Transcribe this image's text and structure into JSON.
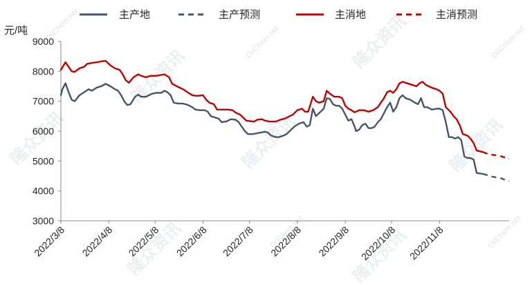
{
  "chart_data": {
    "type": "line",
    "unit_label": "元/吨",
    "ylim": [
      3000,
      9000
    ],
    "y_ticks": [
      3000,
      4000,
      5000,
      6000,
      7000,
      8000,
      9000
    ],
    "x_tick_labels": [
      "2022/3/8",
      "2022/4/8",
      "2022/5/8",
      "2022/6/8",
      "2022/7/8",
      "2022/8/8",
      "2022/9/8",
      "2022/10/8",
      "2022/11/8"
    ],
    "x_tick_dates": [
      "2022-03-08",
      "2022-04-08",
      "2022-05-08",
      "2022-06-08",
      "2022-07-08",
      "2022-08-08",
      "2022-09-08",
      "2022-10-08",
      "2022-11-08"
    ],
    "x_range": [
      "2022-03-08",
      "2022-12-23"
    ],
    "grid": false,
    "legend_position": "top",
    "colors": {
      "producing": "#44546a",
      "consuming": "#c00000"
    },
    "series": [
      {
        "name": "主产地",
        "color": "#44546a",
        "dash": false,
        "points": [
          [
            "2022-03-08",
            7200
          ],
          [
            "2022-03-09",
            7400
          ],
          [
            "2022-03-11",
            7600
          ],
          [
            "2022-03-13",
            7300
          ],
          [
            "2022-03-15",
            7050
          ],
          [
            "2022-03-17",
            7000
          ],
          [
            "2022-03-20",
            7200
          ],
          [
            "2022-03-23",
            7300
          ],
          [
            "2022-03-26",
            7400
          ],
          [
            "2022-03-28",
            7350
          ],
          [
            "2022-03-31",
            7450
          ],
          [
            "2022-04-03",
            7500
          ],
          [
            "2022-04-06",
            7580
          ],
          [
            "2022-04-09",
            7500
          ],
          [
            "2022-04-12",
            7400
          ],
          [
            "2022-04-14",
            7350
          ],
          [
            "2022-04-16",
            7200
          ],
          [
            "2022-04-18",
            7000
          ],
          [
            "2022-04-20",
            6870
          ],
          [
            "2022-04-22",
            6900
          ],
          [
            "2022-04-25",
            7150
          ],
          [
            "2022-04-27",
            7220
          ],
          [
            "2022-04-29",
            7150
          ],
          [
            "2022-05-02",
            7150
          ],
          [
            "2022-05-04",
            7200
          ],
          [
            "2022-05-06",
            7250
          ],
          [
            "2022-05-09",
            7280
          ],
          [
            "2022-05-12",
            7280
          ],
          [
            "2022-05-14",
            7350
          ],
          [
            "2022-05-16",
            7300
          ],
          [
            "2022-05-18",
            7200
          ],
          [
            "2022-05-20",
            6950
          ],
          [
            "2022-05-23",
            6920
          ],
          [
            "2022-05-26",
            6920
          ],
          [
            "2022-05-29",
            6880
          ],
          [
            "2022-06-01",
            6800
          ],
          [
            "2022-06-03",
            6720
          ],
          [
            "2022-06-06",
            6700
          ],
          [
            "2022-06-09",
            6700
          ],
          [
            "2022-06-11",
            6650
          ],
          [
            "2022-06-13",
            6500
          ],
          [
            "2022-06-16",
            6450
          ],
          [
            "2022-06-18",
            6420
          ],
          [
            "2022-06-20",
            6300
          ],
          [
            "2022-06-23",
            6320
          ],
          [
            "2022-06-26",
            6400
          ],
          [
            "2022-06-29",
            6380
          ],
          [
            "2022-07-01",
            6300
          ],
          [
            "2022-07-03",
            6150
          ],
          [
            "2022-07-05",
            6000
          ],
          [
            "2022-07-07",
            5900
          ],
          [
            "2022-07-10",
            5900
          ],
          [
            "2022-07-12",
            5920
          ],
          [
            "2022-07-15",
            5950
          ],
          [
            "2022-07-18",
            5980
          ],
          [
            "2022-07-20",
            5950
          ],
          [
            "2022-07-22",
            5850
          ],
          [
            "2022-07-25",
            5800
          ],
          [
            "2022-07-27",
            5800
          ],
          [
            "2022-07-30",
            5850
          ],
          [
            "2022-08-01",
            5900
          ],
          [
            "2022-08-03",
            6000
          ],
          [
            "2022-08-06",
            6150
          ],
          [
            "2022-08-09",
            6250
          ],
          [
            "2022-08-12",
            6300
          ],
          [
            "2022-08-14",
            6150
          ],
          [
            "2022-08-16",
            6200
          ],
          [
            "2022-08-18",
            6750
          ],
          [
            "2022-08-20",
            6500
          ],
          [
            "2022-08-22",
            6600
          ],
          [
            "2022-08-25",
            6750
          ],
          [
            "2022-08-27",
            7100
          ],
          [
            "2022-08-29",
            7080
          ],
          [
            "2022-08-31",
            6900
          ],
          [
            "2022-09-02",
            6850
          ],
          [
            "2022-09-04",
            6850
          ],
          [
            "2022-09-06",
            6750
          ],
          [
            "2022-09-08",
            6550
          ],
          [
            "2022-09-10",
            6350
          ],
          [
            "2022-09-12",
            6400
          ],
          [
            "2022-09-14",
            6150
          ],
          [
            "2022-09-15",
            6000
          ],
          [
            "2022-09-17",
            6050
          ],
          [
            "2022-09-19",
            6200
          ],
          [
            "2022-09-21",
            6250
          ],
          [
            "2022-09-23",
            6100
          ],
          [
            "2022-09-25",
            6100
          ],
          [
            "2022-09-27",
            6150
          ],
          [
            "2022-09-29",
            6300
          ],
          [
            "2022-10-01",
            6400
          ],
          [
            "2022-10-03",
            6600
          ],
          [
            "2022-10-05",
            6800
          ],
          [
            "2022-10-07",
            6950
          ],
          [
            "2022-10-09",
            6650
          ],
          [
            "2022-10-11",
            6800
          ],
          [
            "2022-10-13",
            7100
          ],
          [
            "2022-10-15",
            7200
          ],
          [
            "2022-10-17",
            7100
          ],
          [
            "2022-10-20",
            7050
          ],
          [
            "2022-10-23",
            6950
          ],
          [
            "2022-10-25",
            6900
          ],
          [
            "2022-10-27",
            7100
          ],
          [
            "2022-10-29",
            6800
          ],
          [
            "2022-10-31",
            6800
          ],
          [
            "2022-11-03",
            6720
          ],
          [
            "2022-11-06",
            6750
          ],
          [
            "2022-11-08",
            6750
          ],
          [
            "2022-11-10",
            6700
          ],
          [
            "2022-11-12",
            6300
          ],
          [
            "2022-11-14",
            5800
          ],
          [
            "2022-11-16",
            5800
          ],
          [
            "2022-11-18",
            5750
          ],
          [
            "2022-11-20",
            5800
          ],
          [
            "2022-11-22",
            5700
          ],
          [
            "2022-11-24",
            5150
          ],
          [
            "2022-11-26",
            5100
          ],
          [
            "2022-11-28",
            5100
          ],
          [
            "2022-11-30",
            5050
          ],
          [
            "2022-12-02",
            4600
          ],
          [
            "2022-12-06",
            4570
          ]
        ]
      },
      {
        "name": "主产预测",
        "color": "#44546a",
        "dash": true,
        "points": [
          [
            "2022-12-06",
            4570
          ],
          [
            "2022-12-12",
            4480
          ],
          [
            "2022-12-18",
            4420
          ],
          [
            "2022-12-23",
            4320
          ]
        ]
      },
      {
        "name": "主消地",
        "color": "#c00000",
        "dash": false,
        "points": [
          [
            "2022-03-08",
            8050
          ],
          [
            "2022-03-10",
            8220
          ],
          [
            "2022-03-11",
            8300
          ],
          [
            "2022-03-13",
            8150
          ],
          [
            "2022-03-15",
            8000
          ],
          [
            "2022-03-17",
            7980
          ],
          [
            "2022-03-20",
            8100
          ],
          [
            "2022-03-23",
            8150
          ],
          [
            "2022-03-25",
            8250
          ],
          [
            "2022-03-28",
            8280
          ],
          [
            "2022-03-31",
            8300
          ],
          [
            "2022-04-03",
            8330
          ],
          [
            "2022-04-06",
            8350
          ],
          [
            "2022-04-09",
            8200
          ],
          [
            "2022-04-12",
            8100
          ],
          [
            "2022-04-15",
            8050
          ],
          [
            "2022-04-17",
            7900
          ],
          [
            "2022-04-19",
            7700
          ],
          [
            "2022-04-21",
            7620
          ],
          [
            "2022-04-24",
            7800
          ],
          [
            "2022-04-27",
            7900
          ],
          [
            "2022-04-29",
            7850
          ],
          [
            "2022-05-02",
            7800
          ],
          [
            "2022-05-05",
            7850
          ],
          [
            "2022-05-09",
            7850
          ],
          [
            "2022-05-12",
            7880
          ],
          [
            "2022-05-14",
            7900
          ],
          [
            "2022-05-17",
            7800
          ],
          [
            "2022-05-19",
            7580
          ],
          [
            "2022-05-22",
            7500
          ],
          [
            "2022-05-26",
            7400
          ],
          [
            "2022-05-29",
            7300
          ],
          [
            "2022-06-01",
            7200
          ],
          [
            "2022-06-04",
            7180
          ],
          [
            "2022-06-08",
            7200
          ],
          [
            "2022-06-10",
            7050
          ],
          [
            "2022-06-12",
            6950
          ],
          [
            "2022-06-15",
            6900
          ],
          [
            "2022-06-17",
            6720
          ],
          [
            "2022-06-20",
            6720
          ],
          [
            "2022-06-24",
            6720
          ],
          [
            "2022-06-27",
            6700
          ],
          [
            "2022-06-29",
            6620
          ],
          [
            "2022-07-02",
            6550
          ],
          [
            "2022-07-04",
            6450
          ],
          [
            "2022-07-06",
            6350
          ],
          [
            "2022-07-09",
            6330
          ],
          [
            "2022-07-11",
            6320
          ],
          [
            "2022-07-13",
            6380
          ],
          [
            "2022-07-16",
            6400
          ],
          [
            "2022-07-18",
            6350
          ],
          [
            "2022-07-21",
            6320
          ],
          [
            "2022-07-25",
            6320
          ],
          [
            "2022-07-28",
            6380
          ],
          [
            "2022-07-31",
            6420
          ],
          [
            "2022-08-03",
            6500
          ],
          [
            "2022-08-05",
            6550
          ],
          [
            "2022-08-08",
            6700
          ],
          [
            "2022-08-11",
            6750
          ],
          [
            "2022-08-13",
            6650
          ],
          [
            "2022-08-15",
            6650
          ],
          [
            "2022-08-18",
            7150
          ],
          [
            "2022-08-20",
            7000
          ],
          [
            "2022-08-22",
            6950
          ],
          [
            "2022-08-25",
            7000
          ],
          [
            "2022-08-27",
            7350
          ],
          [
            "2022-08-29",
            7250
          ],
          [
            "2022-09-01",
            7150
          ],
          [
            "2022-09-04",
            7150
          ],
          [
            "2022-09-06",
            7100
          ],
          [
            "2022-09-08",
            6850
          ],
          [
            "2022-09-10",
            6750
          ],
          [
            "2022-09-12",
            6700
          ],
          [
            "2022-09-14",
            6630
          ],
          [
            "2022-09-17",
            6700
          ],
          [
            "2022-09-20",
            6700
          ],
          [
            "2022-09-23",
            6650
          ],
          [
            "2022-09-26",
            6700
          ],
          [
            "2022-09-29",
            6800
          ],
          [
            "2022-10-01",
            6950
          ],
          [
            "2022-10-03",
            7100
          ],
          [
            "2022-10-05",
            7300
          ],
          [
            "2022-10-07",
            7350
          ],
          [
            "2022-10-09",
            7280
          ],
          [
            "2022-10-11",
            7400
          ],
          [
            "2022-10-13",
            7600
          ],
          [
            "2022-10-15",
            7650
          ],
          [
            "2022-10-18",
            7600
          ],
          [
            "2022-10-21",
            7550
          ],
          [
            "2022-10-24",
            7500
          ],
          [
            "2022-10-26",
            7600
          ],
          [
            "2022-10-28",
            7650
          ],
          [
            "2022-10-30",
            7550
          ],
          [
            "2022-11-01",
            7500
          ],
          [
            "2022-11-03",
            7450
          ],
          [
            "2022-11-06",
            7400
          ],
          [
            "2022-11-08",
            7350
          ],
          [
            "2022-11-10",
            7250
          ],
          [
            "2022-11-12",
            6800
          ],
          [
            "2022-11-15",
            6650
          ],
          [
            "2022-11-17",
            6500
          ],
          [
            "2022-11-19",
            6400
          ],
          [
            "2022-11-21",
            6200
          ],
          [
            "2022-11-23",
            5900
          ],
          [
            "2022-11-26",
            5850
          ],
          [
            "2022-11-28",
            5750
          ],
          [
            "2022-11-30",
            5600
          ],
          [
            "2022-12-02",
            5350
          ],
          [
            "2022-12-06",
            5300
          ]
        ]
      },
      {
        "name": "主消预测",
        "color": "#c00000",
        "dash": true,
        "points": [
          [
            "2022-12-06",
            5300
          ],
          [
            "2022-12-10",
            5220
          ],
          [
            "2022-12-16",
            5180
          ],
          [
            "2022-12-23",
            5080
          ]
        ]
      }
    ]
  },
  "watermark": {
    "text": "隆众资讯",
    "sub_text": "OilChem.net"
  }
}
